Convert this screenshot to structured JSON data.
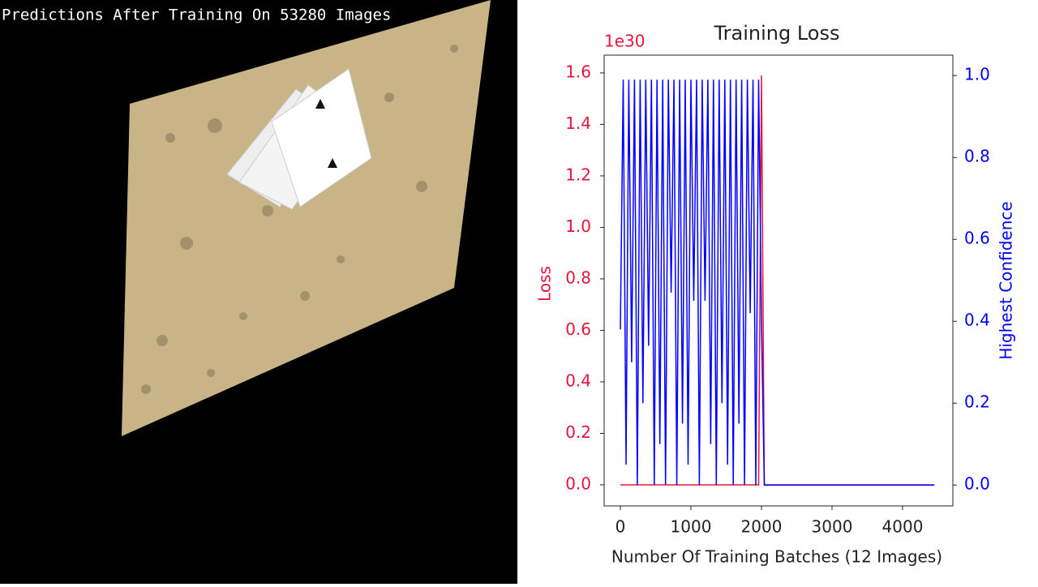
{
  "image_caption": "Predictions After Training On 53280 Images",
  "chart_data": {
    "type": "line",
    "title": "Training Loss",
    "x_label": "Number Of Training Batches (12 Images)",
    "y_label": "Loss",
    "y2_label": "Highest Confidence",
    "y_offset_label": "1e30",
    "x": [
      0,
      40,
      80,
      120,
      160,
      200,
      240,
      280,
      320,
      360,
      400,
      440,
      480,
      520,
      560,
      600,
      640,
      680,
      720,
      760,
      800,
      840,
      880,
      920,
      960,
      1000,
      1040,
      1080,
      1120,
      1160,
      1200,
      1240,
      1280,
      1320,
      1360,
      1400,
      1440,
      1480,
      1520,
      1560,
      1600,
      1640,
      1680,
      1720,
      1760,
      1800,
      1840,
      1880,
      1920,
      1960,
      2000,
      2040,
      4450
    ],
    "series": [
      {
        "name": "Loss",
        "color": "#e8143c",
        "axis": "y",
        "values": [
          0,
          0,
          0,
          0,
          0,
          0,
          0,
          0,
          0,
          0,
          0,
          0,
          0,
          0,
          0,
          0,
          0,
          0,
          0,
          0,
          0,
          0,
          0,
          0,
          0,
          0,
          0,
          0,
          0,
          0,
          0,
          0,
          0,
          0,
          0,
          0,
          0,
          0,
          0,
          0,
          0,
          0,
          0,
          0,
          0,
          0,
          0,
          0,
          0,
          0,
          1.59,
          0,
          0
        ]
      },
      {
        "name": "Highest Confidence",
        "color": "#0000ff",
        "axis": "y2",
        "values": [
          0.38,
          0.99,
          0.05,
          0.99,
          0.3,
          0.99,
          0,
          0.99,
          0.2,
          0.99,
          0.34,
          0.99,
          0,
          0.99,
          0.1,
          0.99,
          0,
          0.99,
          0.47,
          0.99,
          0,
          0.99,
          0.15,
          0.99,
          0.05,
          0.99,
          0.45,
          0.99,
          0,
          0.99,
          0.45,
          0.99,
          0.1,
          0.99,
          0,
          0.99,
          0.2,
          0.99,
          0.05,
          0.99,
          0,
          0.99,
          0.15,
          0.99,
          0,
          0.99,
          0.42,
          0.99,
          0,
          0.99,
          0.4,
          0,
          0
        ]
      }
    ],
    "xlim": [
      -230,
      4713
    ],
    "xticks": [
      0,
      1000,
      2000,
      3000,
      4000
    ],
    "ylim": [
      -0.082,
      1.669
    ],
    "yticks": [
      {
        "value": 0,
        "label": "0.0"
      },
      {
        "value": 0.2,
        "label": "0.2"
      },
      {
        "value": 0.4,
        "label": "0.4"
      },
      {
        "value": 0.6,
        "label": "0.6"
      },
      {
        "value": 0.8,
        "label": "0.8"
      },
      {
        "value": 1,
        "label": "1.0"
      },
      {
        "value": 1.2,
        "label": "1.2"
      },
      {
        "value": 1.4,
        "label": "1.4"
      },
      {
        "value": 1.6,
        "label": "1.6"
      }
    ],
    "y2lim": [
      -0.051,
      1.05
    ],
    "y2ticks": [
      {
        "value": 0,
        "label": "0.0"
      },
      {
        "value": 0.2,
        "label": "0.2"
      },
      {
        "value": 0.4,
        "label": "0.4"
      },
      {
        "value": 0.6,
        "label": "0.6"
      },
      {
        "value": 0.8,
        "label": "0.8"
      },
      {
        "value": 1,
        "label": "1.0"
      }
    ],
    "grid": false
  }
}
